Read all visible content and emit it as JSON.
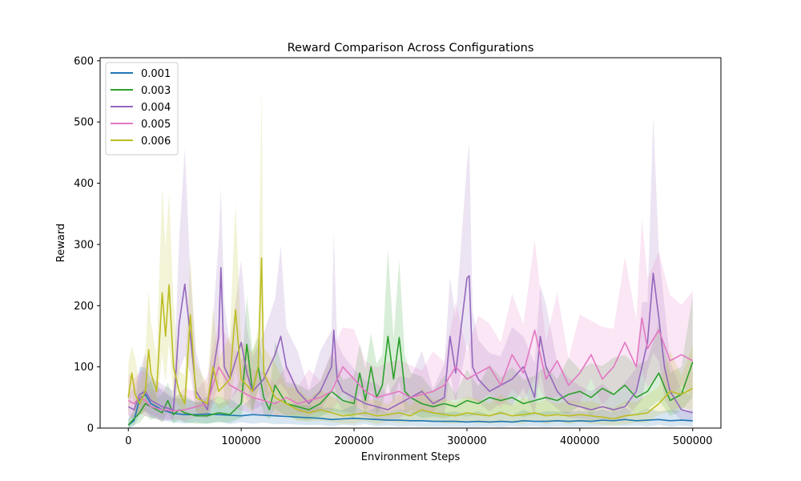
{
  "chart_data": {
    "type": "line",
    "title": "Reward Comparison Across Configurations",
    "xlabel": "Environment Steps",
    "ylabel": "Reward",
    "xlim": [
      -25000,
      525000
    ],
    "ylim": [
      0,
      605
    ],
    "xticks": [
      0,
      100000,
      200000,
      300000,
      400000,
      500000
    ],
    "yticks": [
      0,
      100,
      200,
      300,
      400,
      500,
      600
    ],
    "xtick_labels": [
      "0",
      "100000",
      "200000",
      "300000",
      "400000",
      "500000"
    ],
    "ytick_labels": [
      "0",
      "100",
      "200",
      "300",
      "400",
      "500",
      "600"
    ],
    "legend_location": "top-left",
    "grid": false,
    "series": [
      {
        "name": "0.001",
        "color": "#1f77b4",
        "points": [
          [
            0,
            5
          ],
          [
            5000,
            12
          ],
          [
            10000,
            48
          ],
          [
            15000,
            55
          ],
          [
            20000,
            40
          ],
          [
            30000,
            30
          ],
          [
            40000,
            24
          ],
          [
            50000,
            22
          ],
          [
            60000,
            22
          ],
          [
            70000,
            23
          ],
          [
            80000,
            22
          ],
          [
            90000,
            21
          ],
          [
            100000,
            20
          ],
          [
            110000,
            22
          ],
          [
            120000,
            21
          ],
          [
            130000,
            20
          ],
          [
            140000,
            19
          ],
          [
            150000,
            18
          ],
          [
            160000,
            17
          ],
          [
            170000,
            16
          ],
          [
            180000,
            14
          ],
          [
            190000,
            15
          ],
          [
            200000,
            16
          ],
          [
            210000,
            15
          ],
          [
            220000,
            14
          ],
          [
            230000,
            13
          ],
          [
            240000,
            13
          ],
          [
            250000,
            12
          ],
          [
            260000,
            12
          ],
          [
            270000,
            11
          ],
          [
            280000,
            11
          ],
          [
            290000,
            11
          ],
          [
            300000,
            10
          ],
          [
            310000,
            11
          ],
          [
            320000,
            10
          ],
          [
            330000,
            11
          ],
          [
            340000,
            10
          ],
          [
            350000,
            12
          ],
          [
            360000,
            11
          ],
          [
            370000,
            11
          ],
          [
            380000,
            12
          ],
          [
            390000,
            11
          ],
          [
            400000,
            12
          ],
          [
            410000,
            11
          ],
          [
            420000,
            13
          ],
          [
            430000,
            12
          ],
          [
            440000,
            14
          ],
          [
            450000,
            12
          ],
          [
            460000,
            13
          ],
          [
            470000,
            14
          ],
          [
            480000,
            12
          ],
          [
            490000,
            13
          ],
          [
            500000,
            12
          ]
        ]
      },
      {
        "name": "0.003",
        "color": "#2ca02c",
        "points": [
          [
            0,
            5
          ],
          [
            5000,
            15
          ],
          [
            10000,
            25
          ],
          [
            15000,
            40
          ],
          [
            20000,
            35
          ],
          [
            25000,
            30
          ],
          [
            30000,
            25
          ],
          [
            35000,
            45
          ],
          [
            40000,
            22
          ],
          [
            45000,
            30
          ],
          [
            50000,
            25
          ],
          [
            60000,
            20
          ],
          [
            70000,
            20
          ],
          [
            80000,
            25
          ],
          [
            90000,
            22
          ],
          [
            100000,
            40
          ],
          [
            105000,
            137
          ],
          [
            110000,
            60
          ],
          [
            115000,
            100
          ],
          [
            120000,
            50
          ],
          [
            125000,
            30
          ],
          [
            130000,
            70
          ],
          [
            140000,
            40
          ],
          [
            150000,
            35
          ],
          [
            160000,
            30
          ],
          [
            170000,
            40
          ],
          [
            180000,
            60
          ],
          [
            190000,
            45
          ],
          [
            200000,
            40
          ],
          [
            205000,
            90
          ],
          [
            210000,
            45
          ],
          [
            215000,
            100
          ],
          [
            220000,
            50
          ],
          [
            225000,
            70
          ],
          [
            230000,
            150
          ],
          [
            235000,
            80
          ],
          [
            240000,
            148
          ],
          [
            245000,
            60
          ],
          [
            250000,
            50
          ],
          [
            260000,
            40
          ],
          [
            270000,
            35
          ],
          [
            280000,
            40
          ],
          [
            290000,
            35
          ],
          [
            300000,
            45
          ],
          [
            310000,
            40
          ],
          [
            320000,
            50
          ],
          [
            330000,
            45
          ],
          [
            340000,
            50
          ],
          [
            350000,
            40
          ],
          [
            360000,
            45
          ],
          [
            370000,
            50
          ],
          [
            380000,
            45
          ],
          [
            390000,
            55
          ],
          [
            400000,
            60
          ],
          [
            410000,
            50
          ],
          [
            420000,
            65
          ],
          [
            430000,
            55
          ],
          [
            440000,
            70
          ],
          [
            450000,
            50
          ],
          [
            460000,
            60
          ],
          [
            470000,
            90
          ],
          [
            480000,
            45
          ],
          [
            490000,
            55
          ],
          [
            500000,
            108
          ]
        ]
      },
      {
        "name": "0.004",
        "color": "#9467bd",
        "points": [
          [
            0,
            35
          ],
          [
            5000,
            30
          ],
          [
            10000,
            55
          ],
          [
            15000,
            60
          ],
          [
            20000,
            45
          ],
          [
            30000,
            35
          ],
          [
            40000,
            30
          ],
          [
            45000,
            170
          ],
          [
            50000,
            235
          ],
          [
            55000,
            150
          ],
          [
            60000,
            60
          ],
          [
            70000,
            30
          ],
          [
            80000,
            150
          ],
          [
            82000,
            262
          ],
          [
            85000,
            100
          ],
          [
            90000,
            80
          ],
          [
            100000,
            140
          ],
          [
            105000,
            90
          ],
          [
            110000,
            60
          ],
          [
            120000,
            80
          ],
          [
            130000,
            120
          ],
          [
            135000,
            150
          ],
          [
            140000,
            100
          ],
          [
            150000,
            60
          ],
          [
            160000,
            40
          ],
          [
            170000,
            60
          ],
          [
            180000,
            100
          ],
          [
            182000,
            160
          ],
          [
            185000,
            80
          ],
          [
            190000,
            60
          ],
          [
            200000,
            50
          ],
          [
            210000,
            40
          ],
          [
            220000,
            35
          ],
          [
            230000,
            30
          ],
          [
            240000,
            40
          ],
          [
            250000,
            50
          ],
          [
            260000,
            60
          ],
          [
            270000,
            40
          ],
          [
            280000,
            50
          ],
          [
            285000,
            150
          ],
          [
            290000,
            90
          ],
          [
            300000,
            245
          ],
          [
            302000,
            249
          ],
          [
            305000,
            100
          ],
          [
            310000,
            80
          ],
          [
            320000,
            60
          ],
          [
            330000,
            70
          ],
          [
            340000,
            80
          ],
          [
            350000,
            100
          ],
          [
            360000,
            50
          ],
          [
            365000,
            150
          ],
          [
            370000,
            100
          ],
          [
            380000,
            60
          ],
          [
            390000,
            40
          ],
          [
            400000,
            35
          ],
          [
            410000,
            30
          ],
          [
            420000,
            35
          ],
          [
            430000,
            30
          ],
          [
            440000,
            35
          ],
          [
            450000,
            60
          ],
          [
            455000,
            100
          ],
          [
            460000,
            140
          ],
          [
            465000,
            253
          ],
          [
            470000,
            180
          ],
          [
            475000,
            100
          ],
          [
            480000,
            60
          ],
          [
            490000,
            30
          ],
          [
            500000,
            25
          ]
        ]
      },
      {
        "name": "0.005",
        "color": "#e377c2",
        "points": [
          [
            0,
            45
          ],
          [
            5000,
            40
          ],
          [
            10000,
            50
          ],
          [
            15000,
            45
          ],
          [
            20000,
            35
          ],
          [
            30000,
            30
          ],
          [
            40000,
            28
          ],
          [
            50000,
            30
          ],
          [
            60000,
            35
          ],
          [
            70000,
            40
          ],
          [
            80000,
            100
          ],
          [
            90000,
            70
          ],
          [
            100000,
            60
          ],
          [
            110000,
            50
          ],
          [
            120000,
            45
          ],
          [
            130000,
            40
          ],
          [
            140000,
            50
          ],
          [
            150000,
            40
          ],
          [
            160000,
            45
          ],
          [
            170000,
            50
          ],
          [
            180000,
            60
          ],
          [
            190000,
            100
          ],
          [
            200000,
            80
          ],
          [
            210000,
            60
          ],
          [
            220000,
            50
          ],
          [
            230000,
            55
          ],
          [
            240000,
            60
          ],
          [
            250000,
            50
          ],
          [
            260000,
            55
          ],
          [
            270000,
            60
          ],
          [
            280000,
            70
          ],
          [
            290000,
            100
          ],
          [
            300000,
            80
          ],
          [
            310000,
            90
          ],
          [
            320000,
            100
          ],
          [
            330000,
            70
          ],
          [
            340000,
            120
          ],
          [
            350000,
            90
          ],
          [
            360000,
            160
          ],
          [
            370000,
            80
          ],
          [
            380000,
            110
          ],
          [
            390000,
            70
          ],
          [
            400000,
            90
          ],
          [
            410000,
            120
          ],
          [
            420000,
            80
          ],
          [
            430000,
            100
          ],
          [
            440000,
            140
          ],
          [
            450000,
            100
          ],
          [
            455000,
            180
          ],
          [
            460000,
            130
          ],
          [
            470000,
            160
          ],
          [
            480000,
            110
          ],
          [
            490000,
            120
          ],
          [
            500000,
            110
          ]
        ]
      },
      {
        "name": "0.006",
        "color": "#bcbd22",
        "points": [
          [
            0,
            50
          ],
          [
            3000,
            90
          ],
          [
            6000,
            55
          ],
          [
            10000,
            40
          ],
          [
            15000,
            60
          ],
          [
            18000,
            128
          ],
          [
            20000,
            90
          ],
          [
            25000,
            60
          ],
          [
            30000,
            221
          ],
          [
            33000,
            150
          ],
          [
            36000,
            234
          ],
          [
            40000,
            100
          ],
          [
            45000,
            60
          ],
          [
            50000,
            40
          ],
          [
            55000,
            185
          ],
          [
            60000,
            50
          ],
          [
            70000,
            40
          ],
          [
            75000,
            100
          ],
          [
            80000,
            60
          ],
          [
            90000,
            80
          ],
          [
            95000,
            193
          ],
          [
            100000,
            80
          ],
          [
            110000,
            60
          ],
          [
            115000,
            100
          ],
          [
            118000,
            278
          ],
          [
            120000,
            90
          ],
          [
            130000,
            50
          ],
          [
            140000,
            40
          ],
          [
            150000,
            30
          ],
          [
            160000,
            25
          ],
          [
            170000,
            30
          ],
          [
            180000,
            25
          ],
          [
            190000,
            20
          ],
          [
            200000,
            22
          ],
          [
            210000,
            25
          ],
          [
            220000,
            20
          ],
          [
            230000,
            22
          ],
          [
            240000,
            25
          ],
          [
            250000,
            20
          ],
          [
            260000,
            30
          ],
          [
            270000,
            25
          ],
          [
            280000,
            22
          ],
          [
            290000,
            20
          ],
          [
            300000,
            25
          ],
          [
            310000,
            22
          ],
          [
            320000,
            20
          ],
          [
            330000,
            25
          ],
          [
            340000,
            20
          ],
          [
            350000,
            22
          ],
          [
            360000,
            25
          ],
          [
            370000,
            20
          ],
          [
            380000,
            22
          ],
          [
            390000,
            20
          ],
          [
            400000,
            22
          ],
          [
            410000,
            20
          ],
          [
            420000,
            18
          ],
          [
            430000,
            15
          ],
          [
            440000,
            20
          ],
          [
            450000,
            22
          ],
          [
            460000,
            25
          ],
          [
            470000,
            40
          ],
          [
            480000,
            60
          ],
          [
            490000,
            55
          ],
          [
            500000,
            65
          ]
        ]
      }
    ]
  }
}
